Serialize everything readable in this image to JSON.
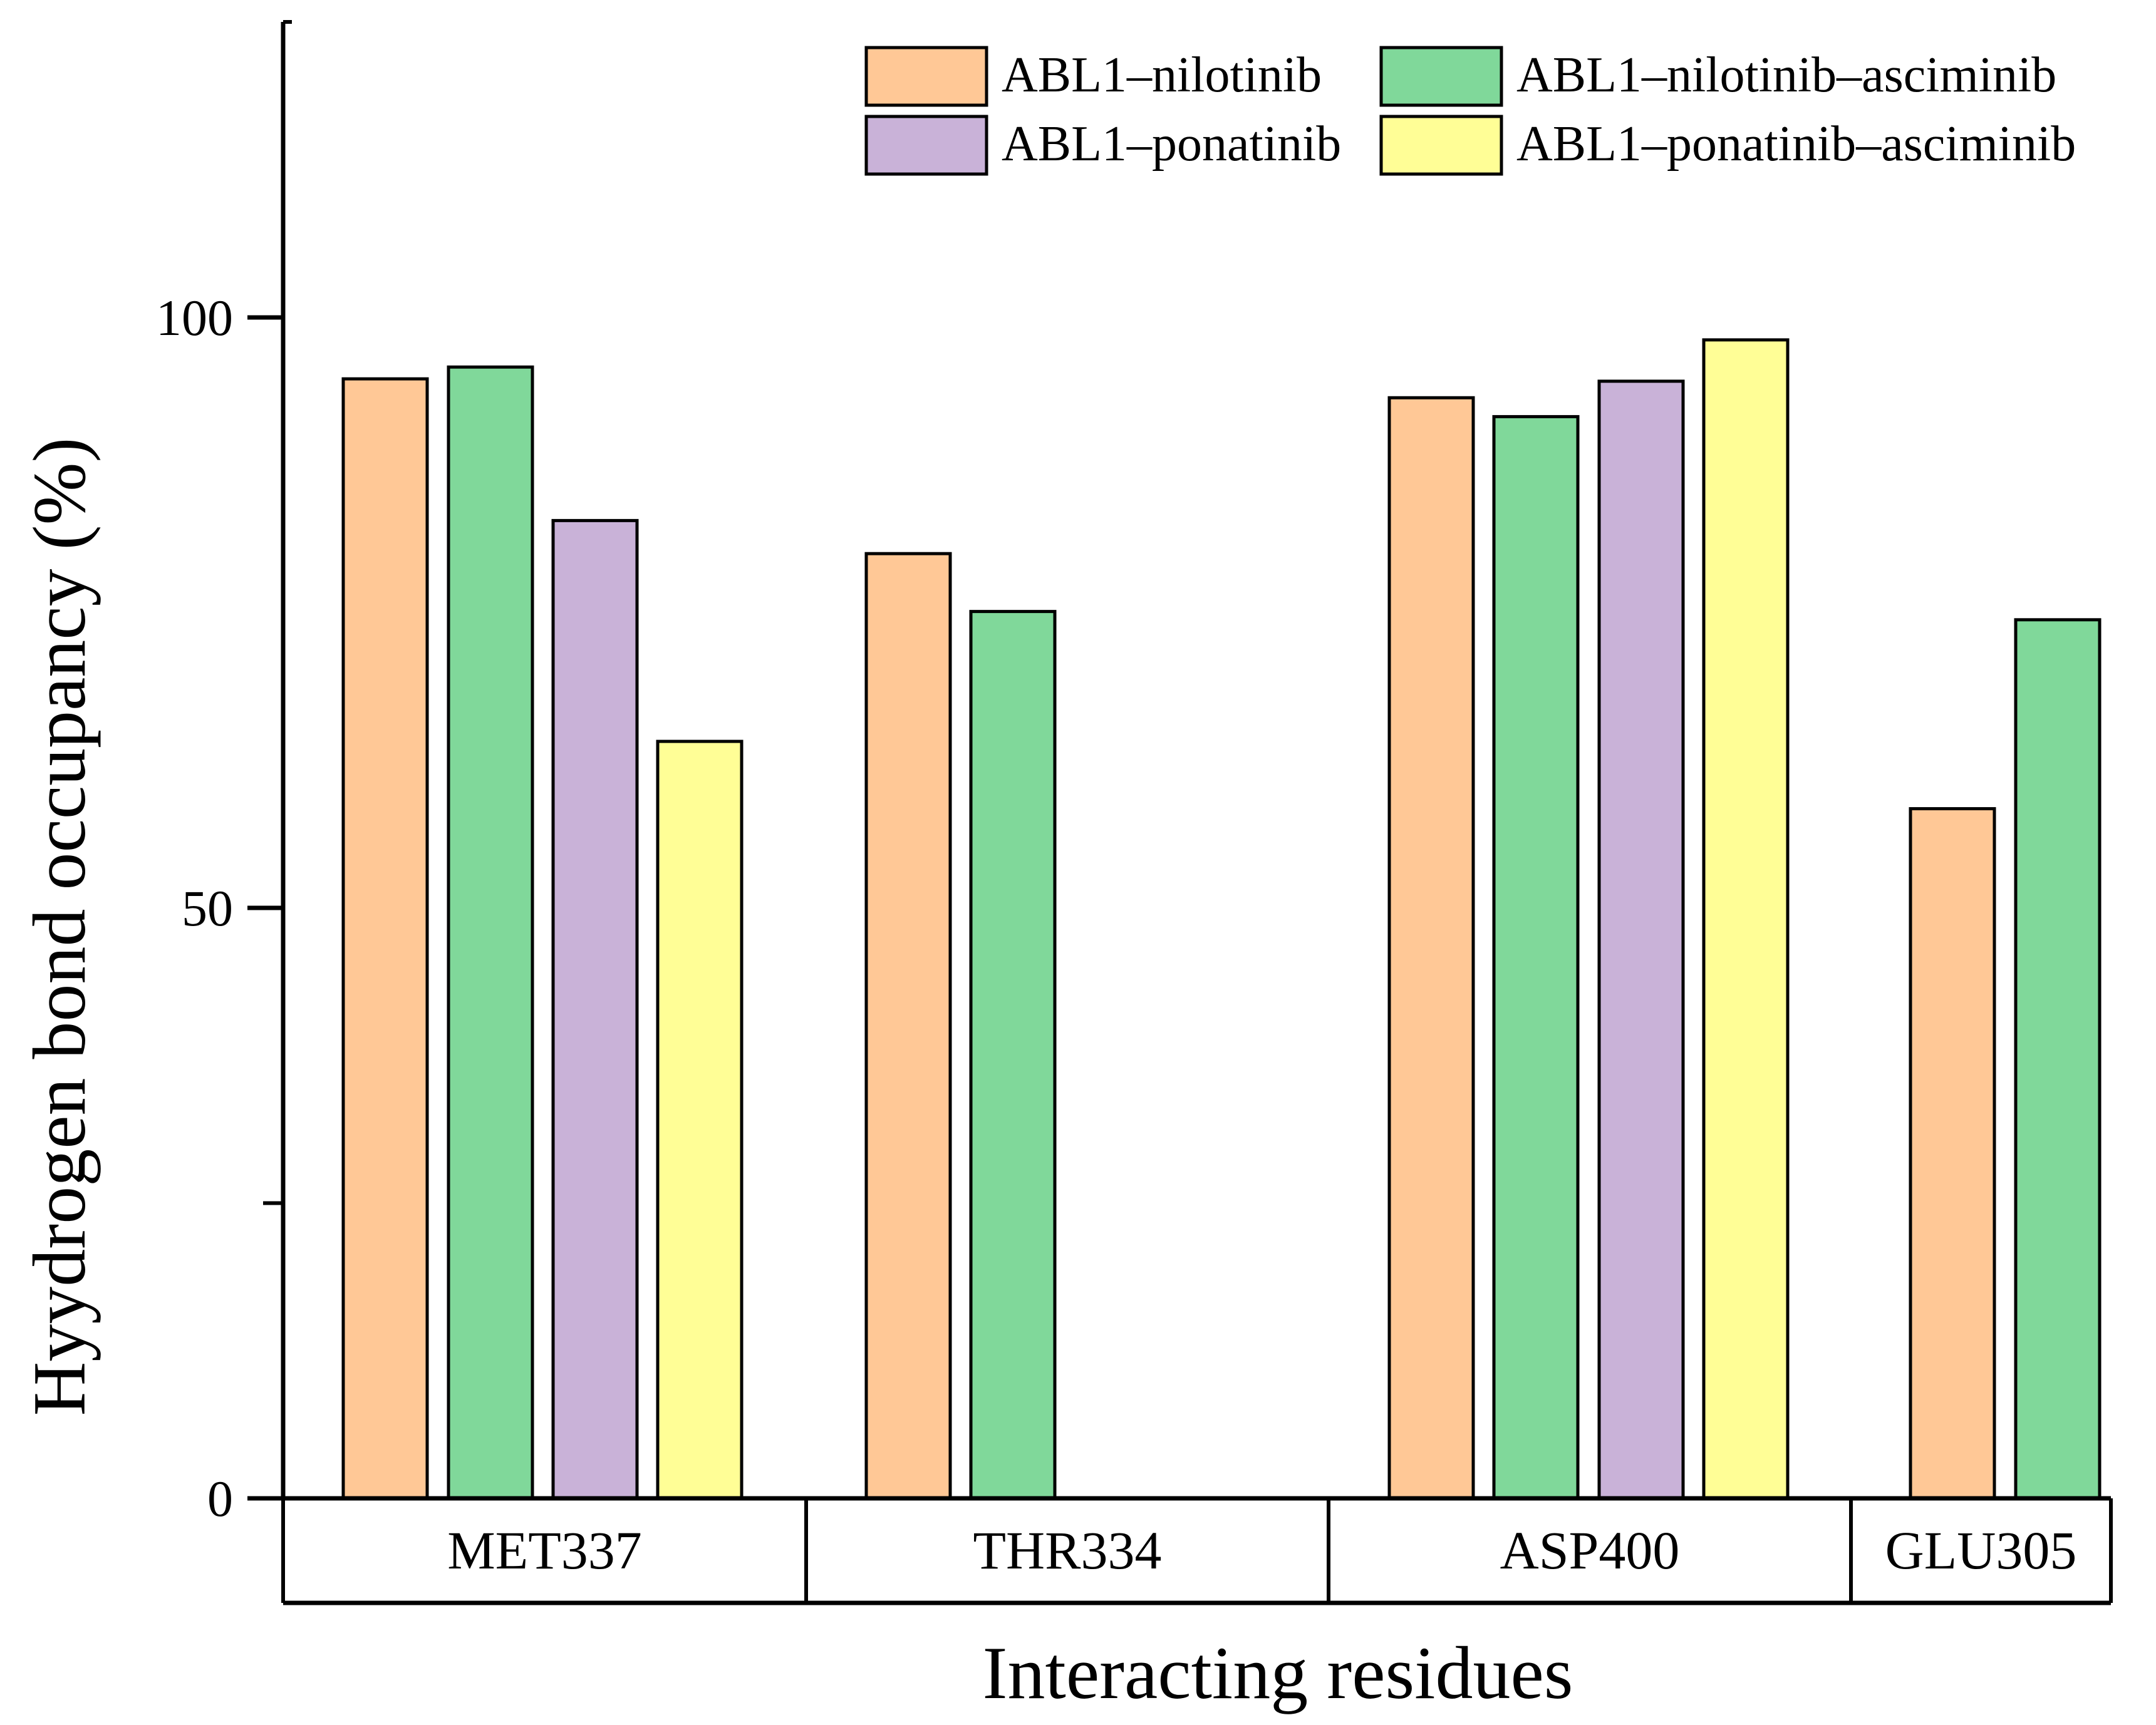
{
  "chart_data": {
    "type": "bar",
    "title": "",
    "xlabel": "Interacting residues",
    "ylabel": "Hyydrogen bond occupancy (%)",
    "ylim": [
      0,
      125
    ],
    "yticks": [
      0,
      50,
      100
    ],
    "minor_yticks": [
      25
    ],
    "categories": [
      "MET337",
      "THR334",
      "ASP400",
      "GLU305"
    ],
    "legend": {
      "placement": "top-right",
      "entries": [
        "ABL1–nilotinib",
        "ABL1–nilotinib–asciminib",
        "ABL1–ponatinib",
        "ABL1–ponatinib–asciminib"
      ]
    },
    "series": [
      {
        "name": "ABL1–nilotinib",
        "color": "#FFC896",
        "values": [
          94.8,
          80.0,
          93.2,
          58.4
        ]
      },
      {
        "name": "ABL1–nilotinib–asciminib",
        "color": "#80D89A",
        "values": [
          95.8,
          75.1,
          91.6,
          74.4
        ]
      },
      {
        "name": "ABL1–ponatinib",
        "color": "#C9B2D8",
        "values": [
          82.8,
          null,
          94.6,
          null
        ]
      },
      {
        "name": "ABL1–ponatinib–asciminib",
        "color": "#FFFE96",
        "values": [
          64.1,
          null,
          98.1,
          null
        ]
      }
    ]
  }
}
